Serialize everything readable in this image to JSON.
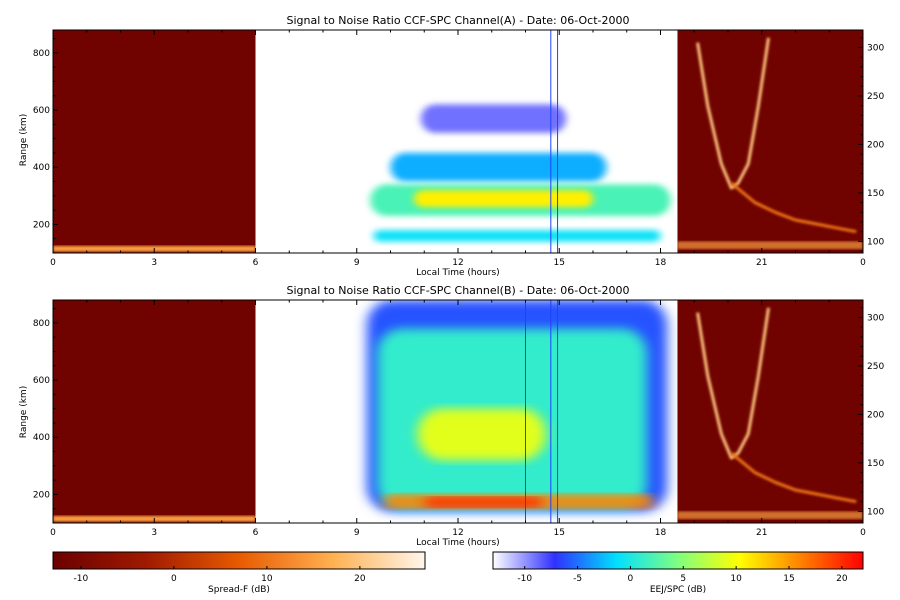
{
  "chart_data": [
    {
      "type": "heatmap",
      "title": "Signal to Noise Ratio CCF-SPC Channel(A) - Date: 06-Oct-2000",
      "xlabel": "Local Time (hours)",
      "ylabel": "Range (km)",
      "xlim": [
        0,
        24
      ],
      "x_tick_labels": [
        "0",
        "3",
        "6",
        "9",
        "12",
        "15",
        "18",
        "21",
        "0"
      ],
      "ylim": [
        100,
        880
      ],
      "y_ticks": [
        200,
        400,
        600,
        800
      ],
      "y2lim": [
        88,
        318
      ],
      "y2_ticks": [
        100,
        150,
        200,
        250,
        300
      ],
      "colorbar": "EEJ/SPC",
      "vertical_lines_hours": [
        14.75,
        14.95
      ],
      "segments": [
        {
          "x0": 0,
          "x1": 6,
          "colormap": "spread_f",
          "background_db": -12,
          "echo_band_km": [
            105,
            125
          ],
          "echo_db": 15
        },
        {
          "x0": 6,
          "x1": 18.5,
          "colormap": "eej",
          "blobs": [
            {
              "t0": 10.9,
              "t1": 15.2,
              "r0": 520,
              "r1": 620,
              "db": -9
            },
            {
              "t0": 10.0,
              "t1": 16.4,
              "r0": 350,
              "r1": 450,
              "db": -3
            },
            {
              "t0": 9.4,
              "t1": 18.3,
              "r0": 230,
              "r1": 340,
              "db": 2
            },
            {
              "t0": 10.7,
              "t1": 16.0,
              "r0": 260,
              "r1": 320,
              "db": 11
            },
            {
              "t0": 9.5,
              "t1": 18.0,
              "r0": 140,
              "r1": 180,
              "db": -1
            }
          ]
        },
        {
          "x0": 18.5,
          "x1": 24,
          "colormap": "spread_f",
          "background_db": -12,
          "traces": [
            {
              "points_hours_km2": [
                [
                  19.1,
                  305
                ],
                [
                  19.4,
                  240
                ],
                [
                  19.8,
                  180
                ],
                [
                  20.1,
                  155
                ],
                [
                  20.3,
                  160
                ],
                [
                  20.6,
                  180
                ],
                [
                  20.9,
                  240
                ],
                [
                  21.2,
                  310
                ]
              ],
              "db": 20
            },
            {
              "points_hours_km2": [
                [
                  20.1,
                  160
                ],
                [
                  20.8,
                  140
                ],
                [
                  21.4,
                  130
                ],
                [
                  22.0,
                  122
                ],
                [
                  22.6,
                  118
                ],
                [
                  23.2,
                  114
                ],
                [
                  23.8,
                  110
                ]
              ],
              "db": 10
            }
          ],
          "echo_band_km2": [
            92,
            100
          ],
          "echo_db": 15
        }
      ]
    },
    {
      "type": "heatmap",
      "title": "Signal to Noise Ratio CCF-SPC Channel(B) - Date: 06-Oct-2000",
      "xlabel": "Local Time (hours)",
      "ylabel": "Range (km)",
      "xlim": [
        0,
        24
      ],
      "x_tick_labels": [
        "0",
        "3",
        "6",
        "9",
        "12",
        "15",
        "18",
        "21",
        "0"
      ],
      "ylim": [
        100,
        880
      ],
      "y_ticks": [
        200,
        400,
        600,
        800
      ],
      "y2lim": [
        88,
        318
      ],
      "y2_ticks": [
        100,
        150,
        200,
        250,
        300
      ],
      "colorbar": "EEJ/SPC",
      "vertical_lines_hours": [
        14.0,
        14.75,
        14.95
      ],
      "segments": [
        {
          "x0": 0,
          "x1": 6,
          "colormap": "spread_f",
          "background_db": -12,
          "echo_band_km": [
            105,
            125
          ],
          "echo_db": 15
        },
        {
          "x0": 6,
          "x1": 18.5,
          "colormap": "eej",
          "blobs": [
            {
              "t0": 9.3,
              "t1": 18.2,
              "r0": 140,
              "r1": 880,
              "db": -6
            },
            {
              "t0": 9.6,
              "t1": 17.6,
              "r0": 150,
              "r1": 780,
              "db": 1
            },
            {
              "t0": 10.8,
              "t1": 14.6,
              "r0": 320,
              "r1": 500,
              "db": 9
            },
            {
              "t0": 9.8,
              "t1": 17.8,
              "r0": 150,
              "r1": 200,
              "db": 16
            },
            {
              "t0": 11.0,
              "t1": 14.5,
              "r0": 155,
              "r1": 190,
              "db": 20
            }
          ]
        },
        {
          "x0": 18.5,
          "x1": 24,
          "colormap": "spread_f",
          "background_db": -12,
          "traces": [
            {
              "points_hours_km2": [
                [
                  19.1,
                  305
                ],
                [
                  19.4,
                  240
                ],
                [
                  19.8,
                  180
                ],
                [
                  20.1,
                  155
                ],
                [
                  20.3,
                  160
                ],
                [
                  20.6,
                  180
                ],
                [
                  20.9,
                  240
                ],
                [
                  21.2,
                  310
                ]
              ],
              "db": 20
            },
            {
              "points_hours_km2": [
                [
                  20.1,
                  160
                ],
                [
                  20.8,
                  140
                ],
                [
                  21.4,
                  130
                ],
                [
                  22.0,
                  122
                ],
                [
                  22.6,
                  118
                ],
                [
                  23.2,
                  114
                ],
                [
                  23.8,
                  110
                ]
              ],
              "db": 10
            }
          ],
          "echo_band_km2": [
            92,
            100
          ],
          "echo_db": 15
        }
      ]
    }
  ],
  "colorbars": {
    "spread_f": {
      "label": "Spread-F (dB)",
      "range": [
        -13,
        27
      ],
      "ticks": [
        -10,
        0,
        10,
        20
      ],
      "colors": [
        "#6b0000",
        "#a01a00",
        "#e85a00",
        "#ffb050",
        "#fff6ec"
      ]
    },
    "eej": {
      "label": "EEJ/SPC (dB)",
      "range": [
        -13,
        22
      ],
      "ticks": [
        -10,
        -5,
        0,
        5,
        10,
        15,
        20
      ],
      "colors": [
        "#ffffff",
        "#3030ff",
        "#00e0ff",
        "#80ff80",
        "#ffff00",
        "#ff8000",
        "#ff0000"
      ]
    }
  }
}
